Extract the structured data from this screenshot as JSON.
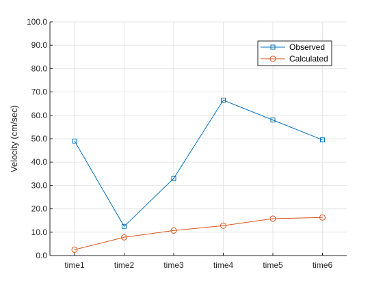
{
  "chart_data": {
    "type": "line",
    "categories": [
      "time1",
      "time2",
      "time3",
      "time4",
      "time5",
      "time6"
    ],
    "series": [
      {
        "name": "Observed",
        "values": [
          49.0,
          12.5,
          33.0,
          66.5,
          58.0,
          49.5
        ],
        "color": "#0072BD",
        "marker": "square"
      },
      {
        "name": "Calculated",
        "values": [
          2.5,
          7.8,
          10.7,
          12.8,
          15.8,
          16.3
        ],
        "color": "#D95319",
        "marker": "circle"
      }
    ],
    "title": "",
    "xlabel": "",
    "ylabel": "Velocity (cm/sec)",
    "ylim": [
      0,
      100
    ],
    "yticks": [
      "0.0",
      "10.0",
      "20.0",
      "30.0",
      "40.0",
      "50.0",
      "60.0",
      "70.0",
      "80.0",
      "90.0",
      "100.0"
    ],
    "grid": true,
    "legend": "top-right"
  }
}
